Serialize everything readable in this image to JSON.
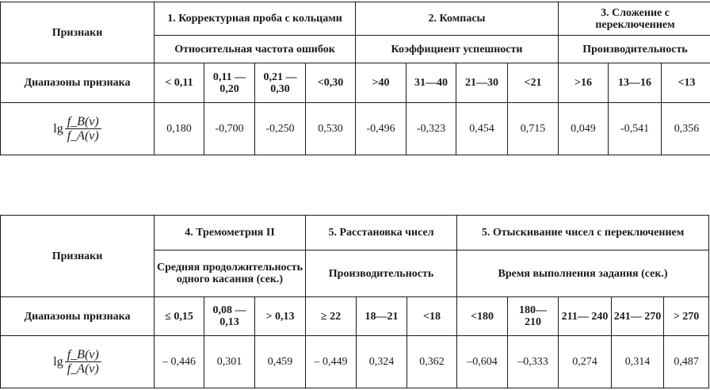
{
  "table1": {
    "row_header_label": "Признаки",
    "ranges_label": "Диапазоны признака",
    "formula": {
      "lg": "lg",
      "numerator": "f_B(v)",
      "denominator": "f_A(v)"
    },
    "groups": [
      {
        "title": "1. Корректурная проба с кольцами",
        "subtitle": "Относительная частота ошибок",
        "ranges": [
          "< 0,11",
          "0,11 —0,20",
          "0,21 —0,30",
          "<0,30"
        ],
        "values": [
          "0,180",
          "-0,700",
          "-0,250",
          "0,530"
        ]
      },
      {
        "title": "2. Компасы",
        "subtitle": "Коэффициент успешности",
        "ranges": [
          ">40",
          "31—40",
          "21—30",
          "<21"
        ],
        "values": [
          "-0,496",
          "-0,323",
          "0,454",
          "0,715"
        ]
      },
      {
        "title": "3. Сложение с переключением",
        "subtitle": "Производительность",
        "ranges": [
          ">16",
          "13—16",
          "<13"
        ],
        "values": [
          "0,049",
          "-0,541",
          "0,356"
        ]
      }
    ]
  },
  "table2": {
    "row_header_label": "Признаки",
    "ranges_label": "Диапазоны признака",
    "formula": {
      "lg": "lg",
      "numerator": "f_B(v)",
      "denominator": "f_A(v)"
    },
    "groups": [
      {
        "title": "4. Тремометрия II",
        "subtitle": "Средняя продолжительность одного касания (сек.)",
        "ranges": [
          "≤ 0,15",
          "0,08 —0,13",
          "> 0,13"
        ],
        "values": [
          "– 0,446",
          "0,301",
          "0,459"
        ]
      },
      {
        "title": "5. Расстановка чисел",
        "subtitle": "Производительность",
        "ranges": [
          "≥ 22",
          "18—21",
          "<18"
        ],
        "values": [
          "– 0,449",
          "0,324",
          "0,362"
        ]
      },
      {
        "title": "5. Отыскивание чисел с переключением",
        "subtitle": "Время выполнения задания (сек.)",
        "ranges": [
          "<180",
          "180— 210",
          "211— 240",
          "241— 270",
          "> 270"
        ],
        "values": [
          "–0,604",
          "–0,333",
          "0,274",
          "0,314",
          "0,487"
        ]
      }
    ]
  }
}
